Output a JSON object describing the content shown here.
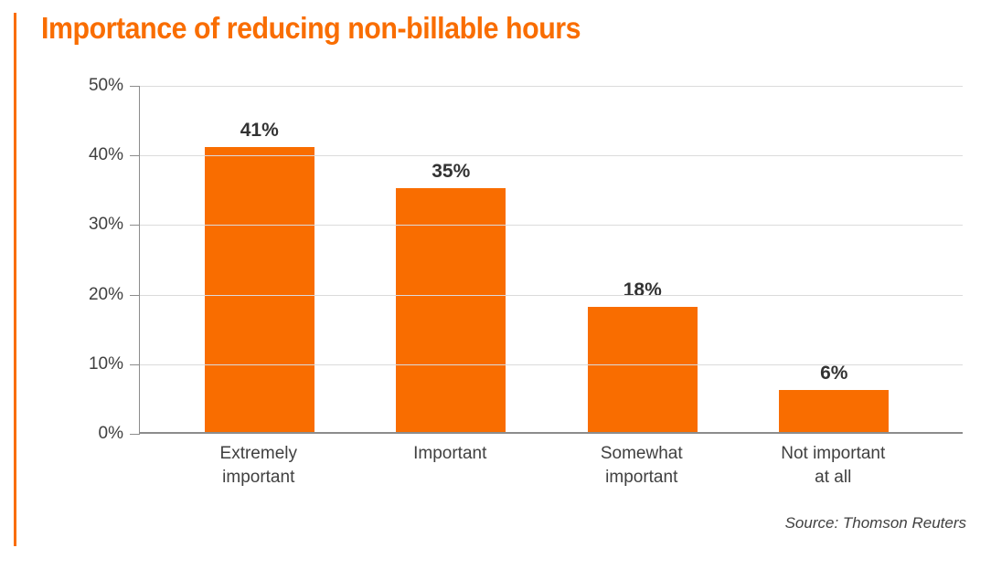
{
  "header": {
    "title": "Importance of reducing non-billable hours"
  },
  "footer": {
    "source": "Source: Thomson Reuters"
  },
  "chart_data": {
    "type": "bar",
    "title": "Importance of reducing non-billable hours",
    "categories": [
      "Extremely\nimportant",
      "Important",
      "Somewhat\nimportant",
      "Not important\nat all"
    ],
    "values": [
      41,
      35,
      18,
      6
    ],
    "data_labels": [
      "41%",
      "35%",
      "18%",
      "6%"
    ],
    "xlabel": "",
    "ylabel": "",
    "ylim": [
      0,
      50
    ],
    "yticks": [
      0,
      10,
      20,
      30,
      40,
      50
    ],
    "ytick_labels": [
      "0%",
      "10%",
      "20%",
      "30%",
      "40%",
      "50%"
    ],
    "grid": "horizontal",
    "legend": "none",
    "bar_color": "#F96D00",
    "source": "Source: Thomson Reuters"
  },
  "colors": {
    "accent_orange": "#F96D00",
    "title_text": "#F96D00",
    "axis_text": "#404040",
    "data_label_text": "#333333",
    "gridline": "#DBDBDB",
    "axis_line": "#8C8C8C",
    "background": "#FFFFFF"
  }
}
